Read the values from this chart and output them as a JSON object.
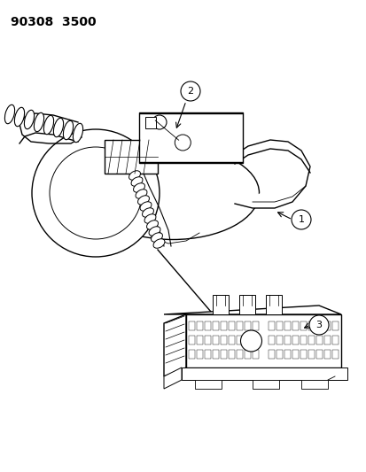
{
  "title_text": "90308  3500",
  "bg_color": "#ffffff",
  "line_color": "#000000",
  "figsize": [
    4.14,
    5.33
  ],
  "dpi": 100,
  "callout_1": [
    0.82,
    0.595
  ],
  "callout_2": [
    0.52,
    0.77
  ],
  "callout_3": [
    0.87,
    0.415
  ],
  "callout_r": 0.025
}
